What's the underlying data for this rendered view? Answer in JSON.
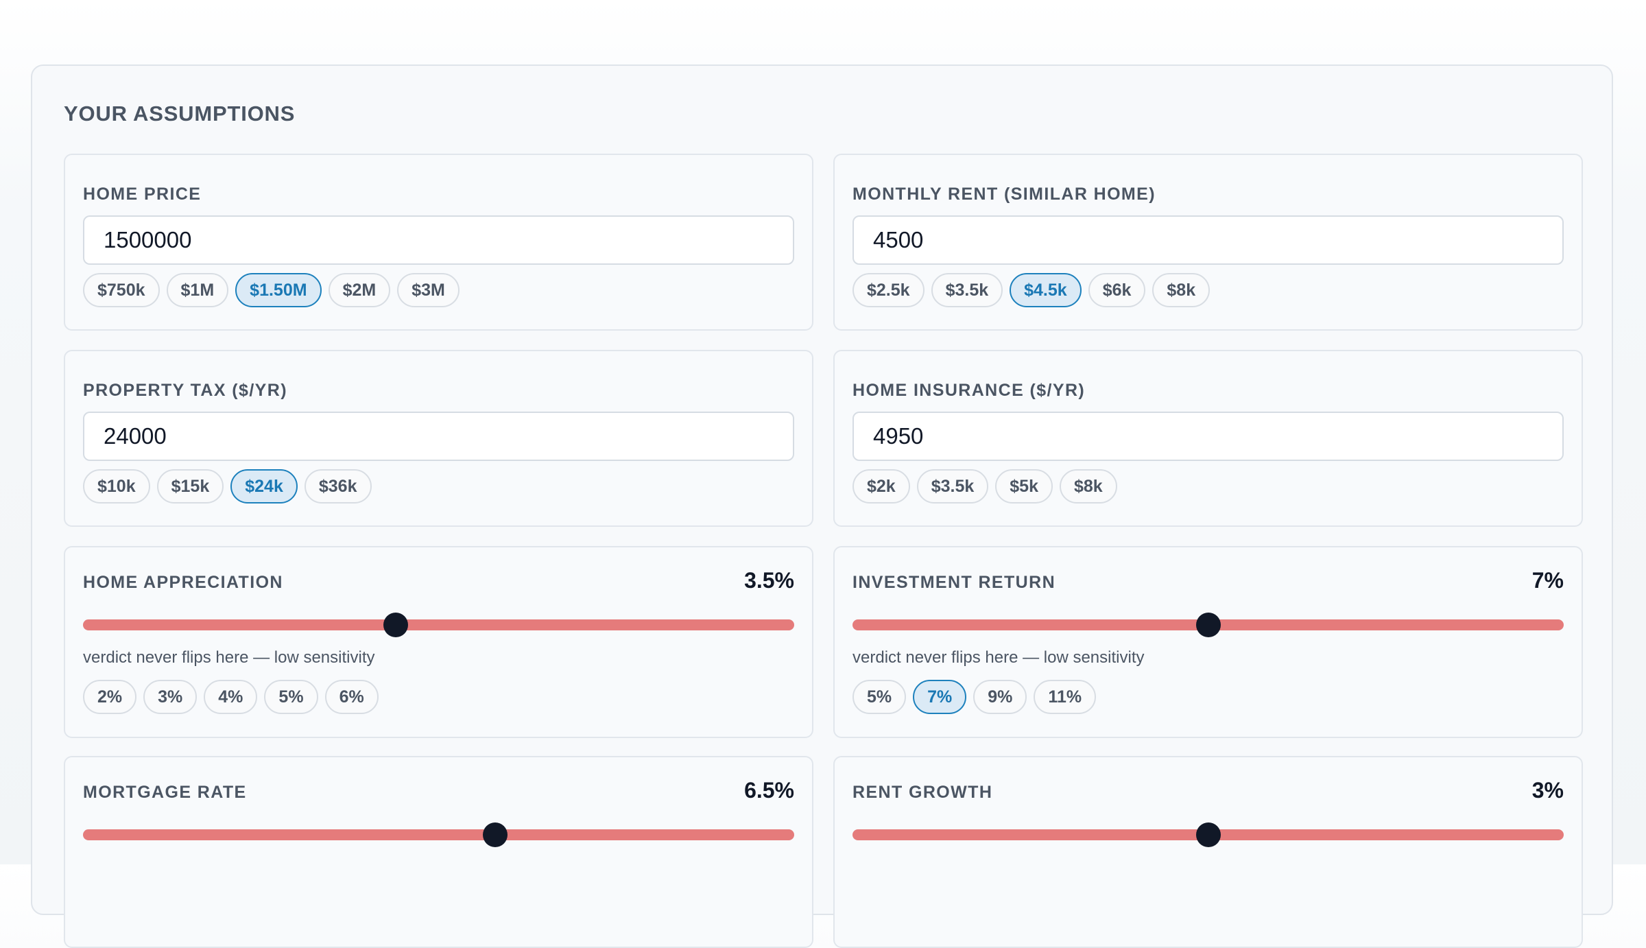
{
  "panel": {
    "title": "YOUR ASSUMPTIONS"
  },
  "home_price": {
    "label": "HOME PRICE",
    "value": "1500000",
    "chips": [
      "$750k",
      "$1M",
      "$1.50M",
      "$2M",
      "$3M"
    ],
    "active_chip": "$1.50M"
  },
  "monthly_rent": {
    "label": "MONTHLY RENT (SIMILAR HOME)",
    "value": "4500",
    "chips": [
      "$2.5k",
      "$3.5k",
      "$4.5k",
      "$6k",
      "$8k"
    ],
    "active_chip": "$4.5k"
  },
  "property_tax": {
    "label": "PROPERTY TAX ($/YR)",
    "value": "24000",
    "chips": [
      "$10k",
      "$15k",
      "$24k",
      "$36k"
    ],
    "active_chip": "$24k"
  },
  "home_insurance": {
    "label": "HOME INSURANCE ($/YR)",
    "value": "4950",
    "chips": [
      "$2k",
      "$3.5k",
      "$5k",
      "$8k"
    ],
    "active_chip": null
  },
  "home_appreciation": {
    "label": "HOME APPRECIATION",
    "display": "3.5%",
    "slider_fraction": 0.44,
    "note": "verdict never flips here — low sensitivity",
    "chips": [
      "2%",
      "3%",
      "4%",
      "5%",
      "6%"
    ],
    "active_chip": null
  },
  "investment_return": {
    "label": "INVESTMENT RETURN",
    "display": "7%",
    "slider_fraction": 0.5,
    "note": "verdict never flips here — low sensitivity",
    "chips": [
      "5%",
      "7%",
      "9%",
      "11%"
    ],
    "active_chip": "7%"
  },
  "mortgage_rate": {
    "label": "MORTGAGE RATE",
    "display": "6.5%",
    "slider_fraction": 0.58
  },
  "rent_growth": {
    "label": "RENT GROWTH",
    "display": "3%",
    "slider_fraction": 0.5
  },
  "colors": {
    "track": "#e57b7b",
    "thumb": "#111827",
    "chip_active_bg": "#dbeaf6",
    "chip_active_border": "#1d81bd"
  }
}
